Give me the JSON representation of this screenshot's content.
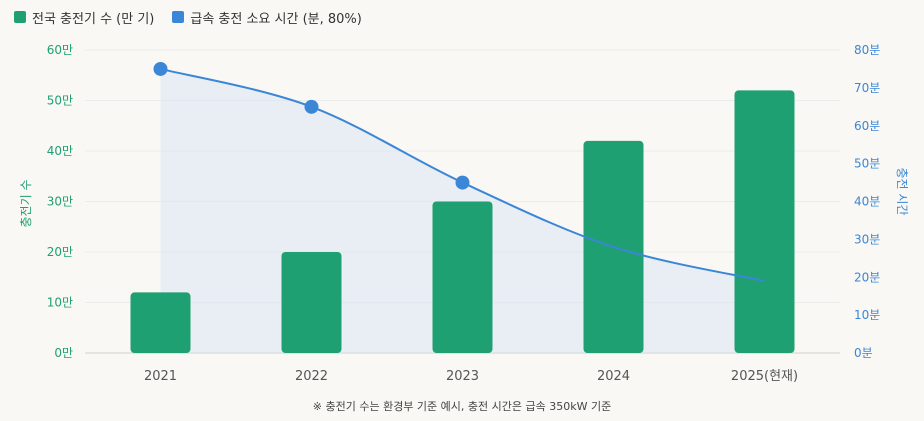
{
  "colors": {
    "bars": "#1fa072",
    "line": "#3b86d6",
    "area": "#dbe6f3"
  },
  "legend": {
    "bars_label": "전국 충전기 수 (만 기)",
    "line_label": "급속 충전 소요 시간 (분, 80%)"
  },
  "footnote": "※ 충전기 수는 환경부 기준 예시, 충전 시간은 급속 350kW 기준",
  "chart_data": {
    "type": "bar+line",
    "categories": [
      "2021",
      "2022",
      "2023",
      "2024",
      "2025(현재)"
    ],
    "left_axis": {
      "label": "충전기 수",
      "ticks": [
        "0만",
        "10만",
        "20만",
        "30만",
        "40만",
        "50만",
        "60만"
      ],
      "range": [
        0,
        60
      ]
    },
    "right_axis": {
      "label": "충전 시간",
      "ticks": [
        "0분",
        "10분",
        "20분",
        "30분",
        "40분",
        "50분",
        "60분",
        "70분",
        "80분"
      ],
      "range": [
        0,
        80
      ]
    },
    "series": [
      {
        "name": "전국 충전기 수 (만 기)",
        "type": "bar",
        "axis": "left",
        "values": [
          12,
          20,
          30,
          42,
          52
        ]
      },
      {
        "name": "급속 충전 소요 시간 (분, 80%)",
        "type": "line",
        "axis": "right",
        "values": [
          75,
          65,
          45,
          28,
          19
        ],
        "markers": [
          true,
          true,
          true,
          false,
          false
        ]
      }
    ],
    "grid": true,
    "legend_position": "top-left"
  }
}
